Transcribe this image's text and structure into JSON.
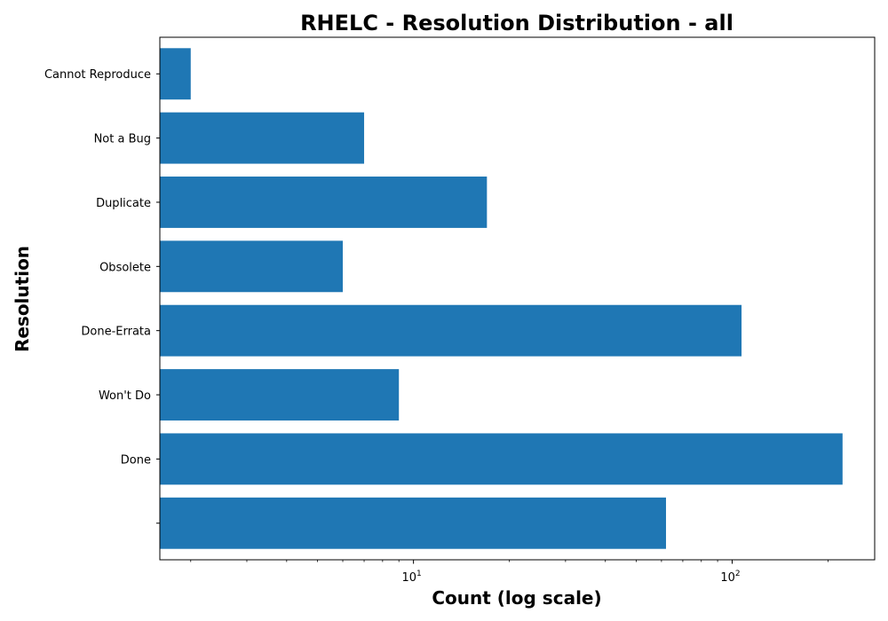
{
  "chart_data": {
    "type": "bar",
    "orientation": "horizontal",
    "title": "RHELC - Resolution Distribution - all",
    "xlabel": "Count (log scale)",
    "ylabel": "Resolution",
    "x_scale": "log",
    "xlim": [
      1.6,
      280
    ],
    "x_major_ticks": [
      {
        "value": 10,
        "base": "10",
        "exp": "1"
      },
      {
        "value": 100,
        "base": "10",
        "exp": "2"
      }
    ],
    "categories": [
      "",
      "Done",
      "Won't Do",
      "Done-Errata",
      "Obsolete",
      "Duplicate",
      "Not a Bug",
      "Cannot Reproduce"
    ],
    "values": [
      62,
      222,
      9,
      107,
      6,
      17,
      7,
      2
    ],
    "bar_color": "#1f77b4",
    "grid": false,
    "legend": "none"
  }
}
